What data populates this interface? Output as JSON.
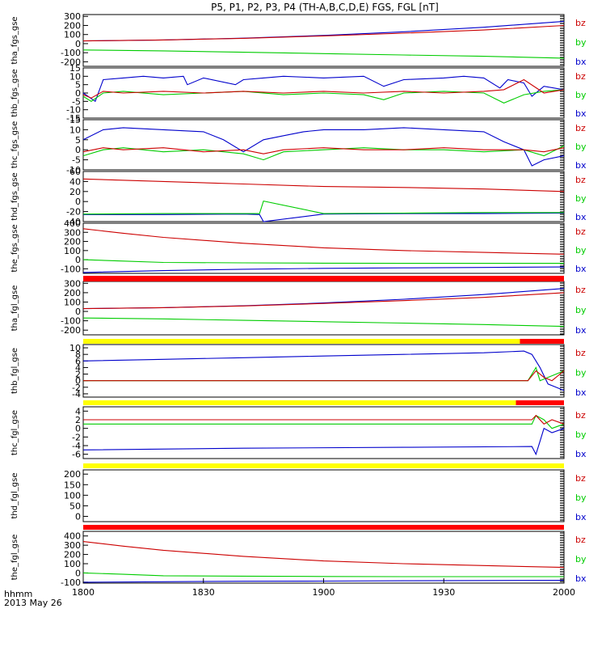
{
  "chart_data": {
    "type": "line",
    "title": "P5, P1, P2, P3, P4 (TH-A,B,C,D,E) FGS, FGL [nT]",
    "xlim": [
      "18:00",
      "20:00"
    ],
    "xtick_labels": [
      "1800",
      "1830",
      "1900",
      "1930",
      "2000"
    ],
    "x_axis_label": "hhmm",
    "date_label": "2013 May 26",
    "colors": {
      "bx": "#0000cc",
      "by": "#00cc00",
      "bz": "#cc0000"
    },
    "panels": [
      {
        "ylabel": "tha_fgs_gse",
        "ylim": [
          -250,
          320
        ],
        "ytick_labels": [
          "300",
          "200",
          "100",
          "0",
          "-100",
          "-200"
        ],
        "legend": [
          "bz",
          "by",
          "bx"
        ],
        "series": [
          {
            "name": "bx",
            "x": [
              0,
              20,
              40,
              60,
              80,
              100,
              120
            ],
            "values": [
              30,
              40,
              60,
              90,
              130,
              180,
              245
            ]
          },
          {
            "name": "by",
            "x": [
              0,
              20,
              40,
              60,
              80,
              100,
              120
            ],
            "values": [
              -70,
              -80,
              -95,
              -110,
              -125,
              -140,
              -160
            ]
          },
          {
            "name": "bz",
            "x": [
              0,
              20,
              40,
              60,
              80,
              100,
              120
            ],
            "values": [
              30,
              40,
              58,
              85,
              115,
              150,
              200
            ]
          }
        ]
      },
      {
        "ylabel": "thb_fgs_gse",
        "ylim": [
          -15,
          15
        ],
        "ytick_labels": [
          "15",
          "10",
          "5",
          "0",
          "-5",
          "-10",
          "-15"
        ],
        "legend": [
          "bz",
          "by",
          "bx"
        ],
        "series": [
          {
            "name": "bx",
            "x": [
              0,
              3,
              5,
              10,
              15,
              20,
              25,
              26,
              30,
              38,
              40,
              45,
              50,
              60,
              70,
              75,
              80,
              90,
              95,
              100,
              104,
              106,
              110,
              112,
              115,
              120
            ],
            "values": [
              0,
              -5,
              8,
              9,
              10,
              9,
              10,
              5,
              9,
              5,
              8,
              9,
              10,
              9,
              10,
              4,
              8,
              9,
              10,
              9,
              3,
              8,
              6,
              -2,
              4,
              2
            ]
          },
          {
            "name": "by",
            "x": [
              0,
              2,
              5,
              10,
              20,
              30,
              40,
              50,
              60,
              70,
              75,
              80,
              90,
              100,
              105,
              110,
              115,
              120
            ],
            "values": [
              -2,
              -5,
              0,
              1,
              -1,
              0,
              1,
              -1,
              0,
              -1,
              -4,
              0,
              1,
              0,
              -6,
              -1,
              1,
              2
            ]
          },
          {
            "name": "bz",
            "x": [
              0,
              2,
              5,
              10,
              20,
              30,
              40,
              50,
              60,
              70,
              80,
              90,
              100,
              105,
              110,
              115,
              120
            ],
            "values": [
              -1,
              -3,
              1,
              0,
              1,
              0,
              1,
              0,
              1,
              0,
              1,
              0,
              1,
              2,
              8,
              0,
              2
            ]
          }
        ]
      },
      {
        "ylabel": "thc_fgs_gse",
        "ylim": [
          -10,
          15
        ],
        "ytick_labels": [
          "15",
          "10",
          "5",
          "0",
          "-5",
          "-10"
        ],
        "legend": [
          "bz",
          "by",
          "bx"
        ],
        "series": [
          {
            "name": "bx",
            "x": [
              0,
              5,
              10,
              20,
              30,
              35,
              40,
              45,
              50,
              55,
              60,
              70,
              80,
              90,
              100,
              105,
              110,
              112,
              115,
              120
            ],
            "values": [
              5,
              10,
              11,
              10,
              9,
              5,
              -1,
              5,
              7,
              9,
              10,
              10,
              11,
              10,
              9,
              4,
              0,
              -8,
              -5,
              -3
            ]
          },
          {
            "name": "by",
            "x": [
              0,
              5,
              10,
              20,
              30,
              40,
              45,
              50,
              60,
              70,
              80,
              90,
              100,
              110,
              115,
              120
            ],
            "values": [
              -3,
              0,
              1,
              -1,
              0,
              -2,
              -5,
              -1,
              0,
              1,
              0,
              0,
              -1,
              0,
              -3,
              2
            ]
          },
          {
            "name": "bz",
            "x": [
              0,
              5,
              10,
              20,
              30,
              40,
              45,
              50,
              60,
              70,
              80,
              90,
              100,
              110,
              115,
              120
            ],
            "values": [
              -1,
              1,
              0,
              1,
              -1,
              0,
              -2,
              0,
              1,
              0,
              0,
              1,
              0,
              0,
              -1,
              1
            ]
          }
        ]
      },
      {
        "ylabel": "thd_fgs_gse",
        "ylim": [
          -40,
          60
        ],
        "ytick_labels": [
          "60",
          "40",
          "20",
          "0",
          "-20",
          "-40"
        ],
        "legend": [
          "bz",
          "by",
          "bx"
        ],
        "series": [
          {
            "name": "bx",
            "x": [
              0,
              20,
              40,
              44,
              45,
              60,
              80,
              100,
              120
            ],
            "values": [
              -26,
              -26,
              -25,
              -26,
              -40,
              -25,
              -24,
              -24,
              -23
            ]
          },
          {
            "name": "by",
            "x": [
              0,
              20,
              40,
              44,
              45,
              60,
              80,
              100,
              120
            ],
            "values": [
              -25,
              -24,
              -24,
              -24,
              1,
              -24,
              -23,
              -22,
              -22
            ]
          },
          {
            "name": "bz",
            "x": [
              0,
              20,
              40,
              60,
              80,
              100,
              120
            ],
            "values": [
              45,
              40,
              35,
              30,
              28,
              25,
              20
            ]
          }
        ]
      },
      {
        "ylabel": "the_fgs_gse",
        "ylim": [
          -150,
          400
        ],
        "ytick_labels": [
          "400",
          "300",
          "200",
          "100",
          "0",
          "-100"
        ],
        "legend": [
          "bz",
          "by",
          "bx"
        ],
        "series": [
          {
            "name": "bx",
            "x": [
              0,
              20,
              40,
              60,
              80,
              100,
              120
            ],
            "values": [
              -140,
              -120,
              -105,
              -95,
              -90,
              -85,
              -80
            ]
          },
          {
            "name": "by",
            "x": [
              0,
              10,
              20,
              40,
              60,
              80,
              100,
              120
            ],
            "values": [
              0,
              -15,
              -30,
              -35,
              -38,
              -40,
              -40,
              -40
            ]
          },
          {
            "name": "bz",
            "x": [
              0,
              10,
              20,
              40,
              60,
              80,
              100,
              120
            ],
            "values": [
              340,
              290,
              245,
              180,
              130,
              100,
              80,
              60
            ]
          }
        ]
      },
      {
        "ylabel": "tha_fgl_gse",
        "ylim": [
          -250,
          320
        ],
        "ytick_labels": [
          "300",
          "200",
          "100",
          "0",
          "-100",
          "-200"
        ],
        "legend": [
          "bz",
          "by",
          "bx"
        ],
        "series": [
          {
            "name": "bx",
            "x": [
              0,
              20,
              40,
              60,
              80,
              100,
              120
            ],
            "values": [
              30,
              40,
              60,
              90,
              130,
              180,
              245
            ]
          },
          {
            "name": "by",
            "x": [
              0,
              20,
              40,
              60,
              80,
              100,
              120
            ],
            "values": [
              -70,
              -80,
              -95,
              -110,
              -125,
              -140,
              -160
            ]
          },
          {
            "name": "bz",
            "x": [
              0,
              20,
              40,
              60,
              80,
              100,
              120
            ],
            "values": [
              30,
              40,
              58,
              85,
              115,
              150,
              200
            ]
          }
        ]
      },
      {
        "ylabel": "thb_fgl_gse",
        "ylim": [
          -5,
          11
        ],
        "ytick_labels": [
          "10",
          "8",
          "6",
          "4",
          "2",
          "0",
          "-2",
          "-4"
        ],
        "legend": [
          "bz",
          "by",
          "bx"
        ],
        "series": [
          {
            "name": "bx",
            "x": [
              0,
              20,
              40,
              60,
              80,
              100,
              110,
              112,
              114,
              116,
              118,
              120
            ],
            "values": [
              6,
              6.5,
              7,
              7.5,
              8,
              8.5,
              9,
              8,
              4,
              -1,
              -2,
              -3
            ]
          },
          {
            "name": "by",
            "x": [
              0,
              40,
              80,
              111,
              113,
              114,
              116,
              118,
              120
            ],
            "values": [
              0,
              0,
              0,
              0,
              4,
              0,
              1,
              2,
              3
            ]
          },
          {
            "name": "bz",
            "x": [
              0,
              40,
              80,
              111,
              113,
              115,
              117,
              120
            ],
            "values": [
              0,
              0,
              0,
              0,
              3,
              1,
              0,
              3
            ]
          }
        ]
      },
      {
        "ylabel": "thc_fgl_gse",
        "ylim": [
          -7,
          5
        ],
        "ytick_labels": [
          "4",
          "2",
          "0",
          "-2",
          "-4",
          "-6"
        ],
        "legend": [
          "bz",
          "by",
          "bx"
        ],
        "series": [
          {
            "name": "bx",
            "x": [
              0,
              40,
              80,
              112,
              113,
              114,
              115,
              117,
              120
            ],
            "values": [
              -5,
              -4.6,
              -4.4,
              -4.2,
              -6,
              -3,
              0,
              -1,
              0
            ]
          },
          {
            "name": "by",
            "x": [
              0,
              40,
              80,
              112,
              113,
              115,
              117,
              120
            ],
            "values": [
              1,
              1,
              1,
              1,
              3,
              2,
              0,
              1
            ]
          },
          {
            "name": "bz",
            "x": [
              0,
              40,
              80,
              112,
              113,
              115,
              117,
              120
            ],
            "values": [
              2,
              2,
              2,
              2,
              3,
              1,
              2,
              1
            ]
          }
        ]
      },
      {
        "ylabel": "thd_fgl_gse",
        "ylim": [
          -25,
          220
        ],
        "ytick_labels": [
          "200",
          "150",
          "100",
          "50",
          "0"
        ],
        "legend": [
          "bz",
          "by",
          "bx"
        ],
        "series": []
      },
      {
        "ylabel": "the_fgl_gse",
        "ylim": [
          -110,
          450
        ],
        "ytick_labels": [
          "400",
          "300",
          "200",
          "100",
          "0",
          "-100"
        ],
        "legend": [
          "bz",
          "by",
          "bx"
        ],
        "series": [
          {
            "name": "bx",
            "x": [
              0,
              20,
              40,
              60,
              80,
              100,
              120
            ],
            "values": [
              -100,
              -95,
              -90,
              -88,
              -85,
              -82,
              -80
            ]
          },
          {
            "name": "by",
            "x": [
              0,
              10,
              20,
              40,
              60,
              80,
              100,
              120
            ],
            "values": [
              0,
              -15,
              -30,
              -35,
              -38,
              -40,
              -40,
              -40
            ]
          },
          {
            "name": "bz",
            "x": [
              0,
              10,
              20,
              40,
              60,
              80,
              100,
              120
            ],
            "values": [
              340,
              290,
              245,
              180,
              130,
              100,
              80,
              60
            ]
          }
        ]
      }
    ],
    "status_bars": [
      {
        "segments": [
          {
            "from": 0,
            "to": 120,
            "color": "#ff0000"
          }
        ]
      },
      {
        "segments": [
          {
            "from": 0,
            "to": 109,
            "color": "#ffff00"
          },
          {
            "from": 109,
            "to": 120,
            "color": "#ff0000"
          }
        ]
      },
      {
        "segments": [
          {
            "from": 0,
            "to": 108,
            "color": "#ffff00"
          },
          {
            "from": 108,
            "to": 120,
            "color": "#ff0000"
          }
        ]
      },
      {
        "segments": [
          {
            "from": 0,
            "to": 120,
            "color": "#ffff00"
          }
        ]
      },
      {
        "segments": [
          {
            "from": 0,
            "to": 120,
            "color": "#ff0000"
          }
        ]
      }
    ]
  }
}
